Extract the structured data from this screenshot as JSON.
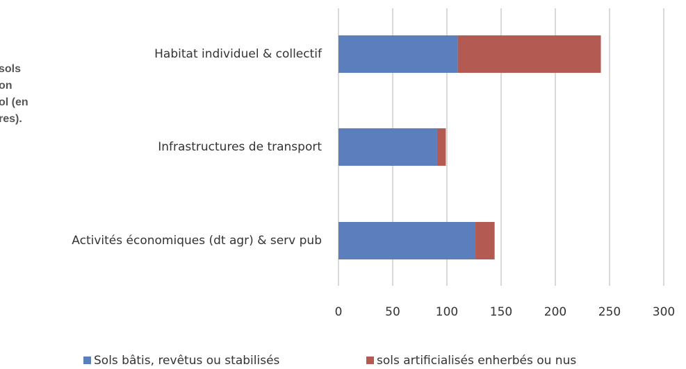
{
  "chart_data": {
    "type": "stacked-barh",
    "annotation": [
      "sols",
      "on",
      "ol (en",
      "res)."
    ],
    "categories": [
      "Habitat individuel & collectif",
      "Infrastructures de transport",
      "Activités économiques (dt agr) & serv pub"
    ],
    "series": [
      {
        "name": "Sols bâtis, revêtus ou stabilisés",
        "color": "#5a7fbc",
        "values": [
          110,
          91,
          126
        ]
      },
      {
        "name": "sols artificialisés enherbés ou nus",
        "color": "#b35a52",
        "values": [
          132,
          8,
          18
        ]
      }
    ],
    "xlim": [
      0,
      300
    ],
    "xticks": [
      0,
      50,
      100,
      150,
      200,
      250,
      300
    ],
    "grid": true
  }
}
